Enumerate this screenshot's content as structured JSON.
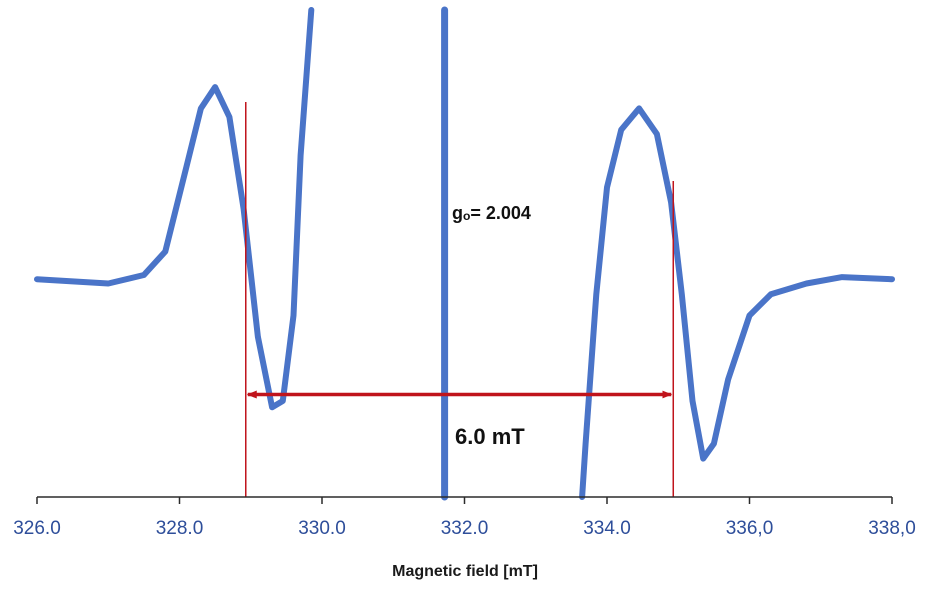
{
  "chart_data": {
    "type": "line",
    "title": "",
    "xlabel": "Magnetic  field [mT]",
    "ylabel": "",
    "xlim": [
      326.0,
      338.0
    ],
    "ylim": [
      -1.0,
      1.0
    ],
    "x_ticks": [
      "326.0",
      "328.0",
      "330.0",
      "332.0",
      "334.0",
      "336,0",
      "338,0"
    ],
    "grid": false,
    "legend": "none",
    "series": [
      {
        "color": "#4a74c8",
        "points": [
          [
            326.0,
            0.02
          ],
          [
            326.5,
            0.01
          ],
          [
            327.0,
            0.0
          ],
          [
            327.5,
            0.04
          ],
          [
            327.8,
            0.15
          ],
          [
            328.1,
            0.55
          ],
          [
            328.3,
            0.82
          ],
          [
            328.5,
            0.92
          ],
          [
            328.7,
            0.78
          ],
          [
            328.9,
            0.35
          ],
          [
            329.1,
            -0.25
          ],
          [
            329.3,
            -0.58
          ],
          [
            329.45,
            -0.55
          ],
          [
            329.6,
            -0.15
          ],
          [
            329.7,
            0.6
          ],
          [
            329.85,
            1.4
          ]
        ]
      },
      {
        "color": "#4a74c8",
        "points": [
          [
            331.72,
            1.4
          ],
          [
            331.72,
            -1.0
          ]
        ]
      },
      {
        "color": "#4a74c8",
        "points": [
          [
            333.65,
            -1.0
          ],
          [
            333.7,
            -0.75
          ],
          [
            333.85,
            -0.05
          ],
          [
            334.0,
            0.45
          ],
          [
            334.2,
            0.72
          ],
          [
            334.45,
            0.82
          ],
          [
            334.7,
            0.7
          ],
          [
            334.9,
            0.38
          ],
          [
            335.05,
            -0.05
          ],
          [
            335.2,
            -0.55
          ],
          [
            335.35,
            -0.82
          ],
          [
            335.5,
            -0.75
          ],
          [
            335.7,
            -0.45
          ],
          [
            336.0,
            -0.15
          ],
          [
            336.3,
            -0.05
          ],
          [
            336.8,
            0.0
          ],
          [
            337.3,
            0.03
          ],
          [
            338.0,
            0.02
          ]
        ]
      }
    ],
    "annotations": [
      {
        "text": "gₒ= 2.004",
        "x": 332.0,
        "y": 0.35
      },
      {
        "text": "6.0 mT",
        "x": 332.7,
        "y": -0.52
      }
    ],
    "markers": {
      "vertical_lines": [
        {
          "x": 328.93,
          "y_from": -1.0,
          "y_to": 0.85
        },
        {
          "x": 334.93,
          "y_from": -1.0,
          "y_to": 0.48
        }
      ],
      "arrow": {
        "x1": 328.93,
        "x2": 334.93,
        "y": -0.52,
        "color": "#c0141c"
      }
    }
  }
}
